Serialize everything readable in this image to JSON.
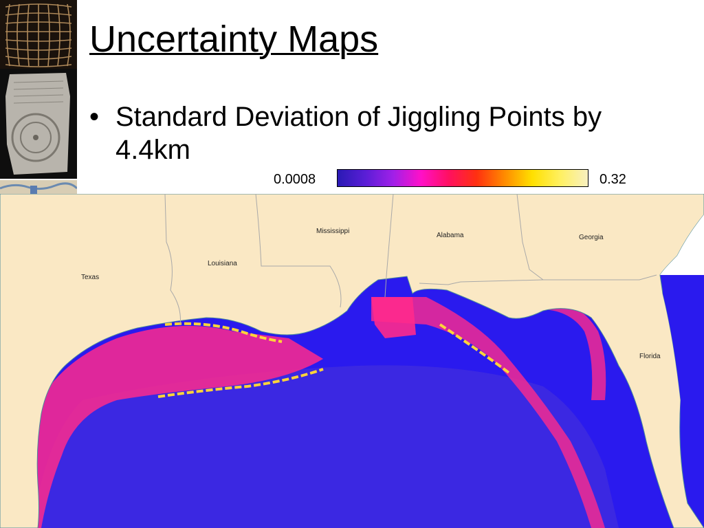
{
  "slide": {
    "title": "Uncertainty Maps",
    "bullet": "Standard Deviation of Jiggling Points by 4.4km"
  },
  "colorbar": {
    "min_label": "0.0008",
    "max_label": "0.32",
    "colors": [
      "#2a1ab4",
      "#5a1ed6",
      "#a020e8",
      "#ff10c8",
      "#ff1060",
      "#ff3010",
      "#ff8a00",
      "#ffe000",
      "#fff060",
      "#f8f0c0"
    ]
  },
  "map": {
    "labels": {
      "texas": "Texas",
      "louisiana": "Louisiana",
      "mississippi": "Mississippi",
      "alabama": "Alabama",
      "georgia": "Georgia",
      "florida": "Florida"
    },
    "colors": {
      "land": "#fae8c4",
      "water_base": "#2a1aee",
      "offshore": "#3d2ae0",
      "high_uncertainty": "#ff2a8c",
      "peak_uncertainty": "#ffd43a",
      "border": "#a8a8a8"
    }
  }
}
